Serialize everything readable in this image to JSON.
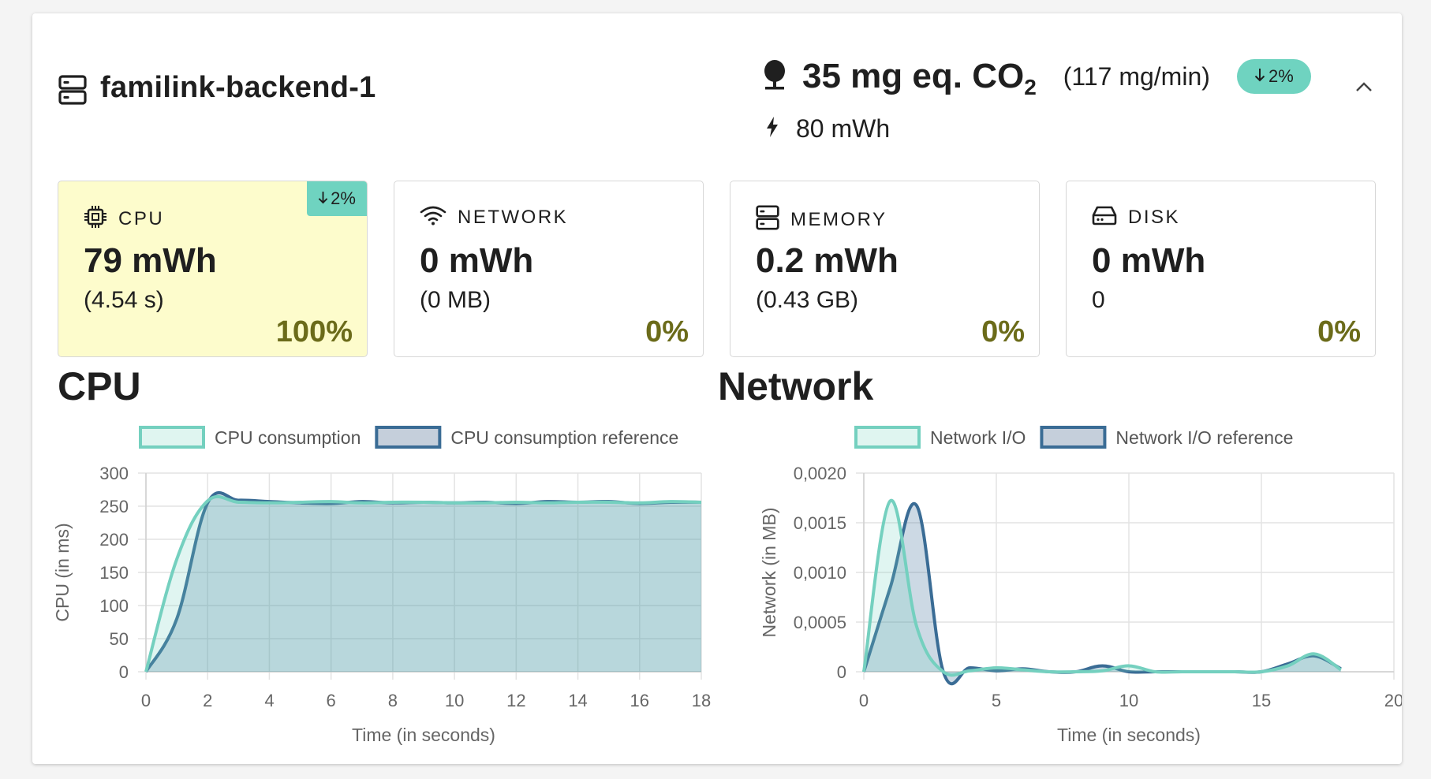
{
  "service": {
    "name": "familink-backend-1",
    "icon": "server-icon"
  },
  "summary": {
    "co2_value": "35 mg eq. CO",
    "co2_subscript": "2",
    "co2_rate": "(117 mg/min)",
    "co2_badge": "2%",
    "energy": "80 mWh"
  },
  "tiles": [
    {
      "label": "CPU",
      "icon": "cpu-chip-icon",
      "value": "79 mWh",
      "detail": "(4.54 s)",
      "percent": "100%",
      "badge": "2%"
    },
    {
      "label": "NETWORK",
      "icon": "wifi-icon",
      "value": "0 mWh",
      "detail": "(0 MB)",
      "percent": "0%"
    },
    {
      "label": "MEMORY",
      "icon": "memory-icon",
      "value": "0.2 mWh",
      "detail": "(0.43 GB)",
      "percent": "0%"
    },
    {
      "label": "DISK",
      "icon": "disk-icon",
      "value": "0 mWh",
      "detail": "0",
      "percent": "0%"
    }
  ],
  "colors": {
    "accent": "#6fd3c0",
    "consumption_line": "#74d0bf",
    "reference_line": "#3a6c95",
    "tile_active_bg": "#fdfccc",
    "percent_text": "#6b6b1a"
  },
  "chart_data": [
    {
      "type": "area",
      "title": "CPU",
      "xlabel": "Time (in seconds)",
      "ylabel": "CPU (in ms)",
      "xlim": [
        0,
        18
      ],
      "ylim": [
        0,
        300
      ],
      "xticks": [
        "0",
        "2",
        "4",
        "6",
        "8",
        "10",
        "12",
        "14",
        "16",
        "18"
      ],
      "yticks": [
        "0",
        "50",
        "100",
        "150",
        "200",
        "250",
        "300"
      ],
      "grid": true,
      "legend": "top-center",
      "x": [
        0,
        1,
        2,
        3,
        4,
        5,
        6,
        7,
        8,
        9,
        10,
        11,
        12,
        13,
        14,
        15,
        16,
        17,
        18
      ],
      "series": [
        {
          "name": "CPU consumption",
          "values": [
            0,
            170,
            258,
            256,
            255,
            256,
            257,
            255,
            256,
            256,
            255,
            255,
            256,
            255,
            256,
            256,
            255,
            257,
            256
          ]
        },
        {
          "name": "CPU consumption reference",
          "values": [
            0,
            80,
            255,
            259,
            257,
            255,
            254,
            257,
            255,
            256,
            255,
            256,
            254,
            257,
            256,
            257,
            254,
            256,
            256
          ]
        }
      ]
    },
    {
      "type": "area",
      "title": "Network",
      "xlabel": "Time (in seconds)",
      "ylabel": "Network (in MB)",
      "xlim": [
        0,
        20
      ],
      "ylim": [
        0,
        0.002
      ],
      "xticks": [
        "0",
        "5",
        "10",
        "15",
        "20"
      ],
      "yticks": [
        "0",
        "0,0005",
        "0,0010",
        "0,0015",
        "0,0020"
      ],
      "grid": true,
      "legend": "top-center",
      "x": [
        0,
        1,
        2,
        3,
        4,
        5,
        6,
        7,
        8,
        9,
        10,
        11,
        12,
        13,
        14,
        15,
        16,
        17,
        18
      ],
      "series": [
        {
          "name": "Network I/O",
          "values": [
            0,
            0.00172,
            0.00045,
            0,
            1e-05,
            4e-05,
            2e-05,
            0,
            0,
            1e-05,
            6e-05,
            0,
            0,
            0,
            0,
            0,
            6e-05,
            0.00018,
            2e-05
          ]
        },
        {
          "name": "Network I/O reference",
          "values": [
            0,
            0.00085,
            0.00167,
            0,
            4e-05,
            1e-05,
            3e-05,
            0,
            0,
            6e-05,
            0,
            0,
            0,
            0,
            0,
            0,
            8e-05,
            0.00016,
            3e-05
          ]
        }
      ]
    }
  ]
}
